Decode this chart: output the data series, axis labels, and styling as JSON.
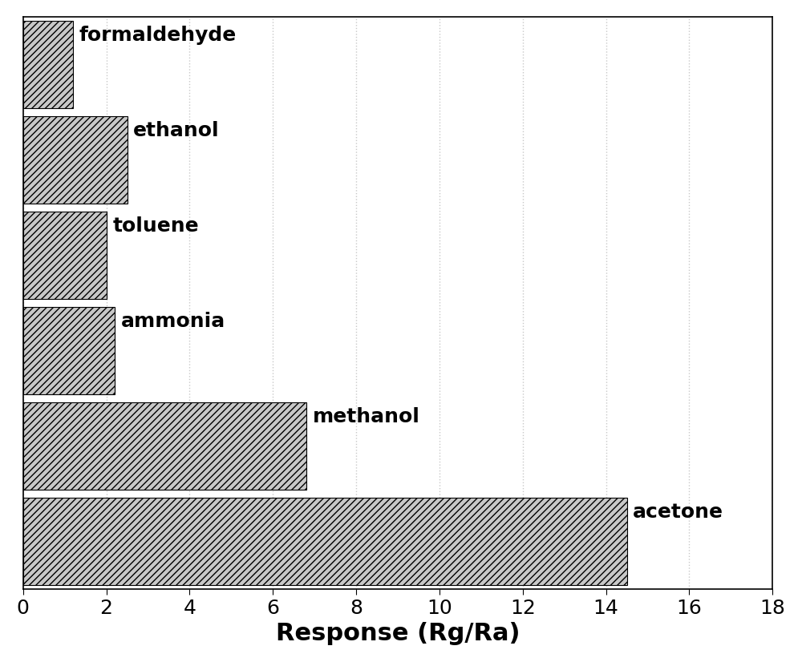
{
  "categories": [
    "formaldehyde",
    "ethanol",
    "toluene",
    "ammonia",
    "methanol",
    "acetone"
  ],
  "values": [
    1.2,
    2.5,
    2.0,
    2.2,
    6.8,
    14.5
  ],
  "bar_color": "#c8c8c8",
  "hatch": "////",
  "xlabel": "Response (Rg/Ra)",
  "xlim": [
    0,
    18
  ],
  "xticks": [
    0,
    2,
    4,
    6,
    8,
    10,
    12,
    14,
    16,
    18
  ],
  "xlabel_fontsize": 22,
  "tick_fontsize": 18,
  "label_fontsize": 18,
  "background_color": "#ffffff",
  "grid_color": "#c8c8c8",
  "bar_height": 0.92
}
